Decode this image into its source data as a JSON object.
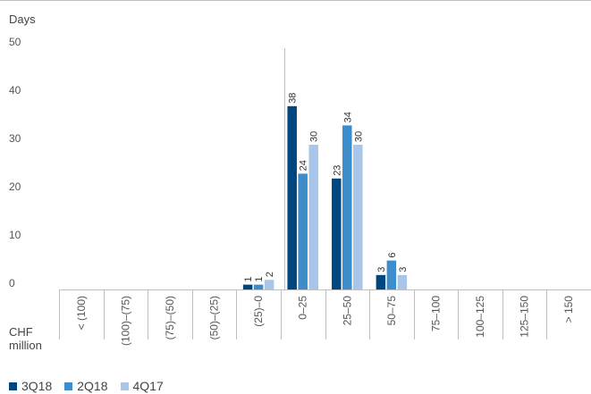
{
  "chart_data": {
    "type": "bar",
    "ylabel": "Days",
    "xlabel": "CHF million",
    "ylim": [
      0,
      50
    ],
    "yticks": [
      0,
      10,
      20,
      30,
      40,
      50
    ],
    "grid": false,
    "legend_position": "bottom-left",
    "categories": [
      "< (100)",
      "(100)–(75)",
      "(75)–(50)",
      "(50)–(25)",
      "(25)–0",
      "0–25",
      "25–50",
      "50–75",
      "75–100",
      "100–125",
      "125–150",
      "> 150"
    ],
    "series": [
      {
        "name": "3Q18",
        "color": "#00467f",
        "values": [
          0,
          0,
          0,
          0,
          1,
          38,
          23,
          3,
          0,
          0,
          0,
          0
        ]
      },
      {
        "name": "2Q18",
        "color": "#3d8ccc",
        "values": [
          0,
          0,
          0,
          0,
          1,
          24,
          34,
          6,
          0,
          0,
          0,
          0
        ]
      },
      {
        "name": "4Q17",
        "color": "#a9c6e8",
        "values": [
          0,
          0,
          0,
          0,
          2,
          30,
          30,
          3,
          0,
          0,
          0,
          0
        ]
      }
    ]
  }
}
